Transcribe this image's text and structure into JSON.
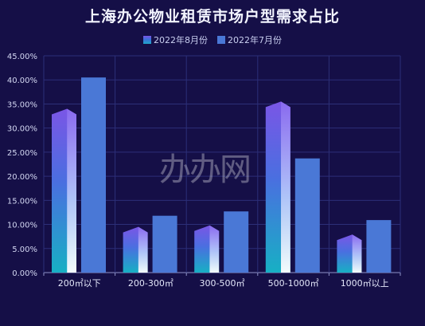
{
  "watermark": "办办网",
  "chart_data": {
    "type": "bar",
    "title": "上海办公物业租赁市场户型需求占比",
    "categories": [
      "200㎡以下",
      "200-300㎡",
      "300-500㎡",
      "500-1000㎡",
      "1000㎡以上"
    ],
    "series": [
      {
        "name": "2022年8月份",
        "values": [
          34.0,
          9.5,
          9.8,
          35.5,
          7.9
        ],
        "color": "#7a56e6"
      },
      {
        "name": "2022年7月份",
        "values": [
          40.5,
          11.8,
          12.7,
          23.7,
          10.9
        ],
        "color": "#4a78d6"
      }
    ],
    "yticks": [
      "0.00%",
      "5.00%",
      "10.00%",
      "15.00%",
      "20.00%",
      "25.00%",
      "30.00%",
      "35.00%",
      "40.00%",
      "45.00%"
    ],
    "ylim": [
      0,
      45
    ],
    "grid": true,
    "legend_position": "top-center"
  }
}
